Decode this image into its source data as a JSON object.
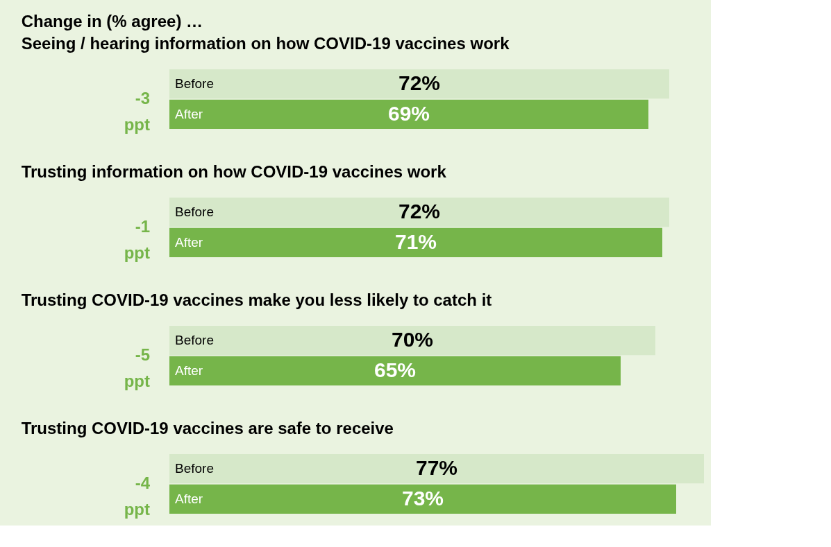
{
  "chart_data": [
    {
      "type": "bar",
      "orientation": "horizontal",
      "title": "Change in (% agree) …",
      "subtitle": "Seeing / hearing information on how COVID-19 vaccines work",
      "categories": [
        "Before",
        "After"
      ],
      "values": [
        72,
        69
      ],
      "value_labels": [
        "72%",
        "69%"
      ],
      "colors": [
        "#d6e8c9",
        "#76b54a"
      ],
      "annotations": [
        "-3 ppt"
      ]
    },
    {
      "type": "bar",
      "orientation": "horizontal",
      "title": "Trusting information on how COVID-19 vaccines work",
      "categories": [
        "Before",
        "After"
      ],
      "values": [
        72,
        71
      ],
      "value_labels": [
        "72%",
        "71%"
      ],
      "colors": [
        "#d6e8c9",
        "#76b54a"
      ],
      "annotations": [
        "-1 ppt"
      ]
    },
    {
      "type": "bar",
      "orientation": "horizontal",
      "title": "Trusting COVID-19 vaccines make you less likely to catch it",
      "categories": [
        "Before",
        "After"
      ],
      "values": [
        70,
        65
      ],
      "value_labels": [
        "70%",
        "65%"
      ],
      "colors": [
        "#d6e8c9",
        "#76b54a"
      ],
      "annotations": [
        "-5 ppt"
      ]
    },
    {
      "type": "bar",
      "orientation": "horizontal",
      "title": "Trusting COVID-19 vaccines are safe to receive",
      "categories": [
        "Before",
        "After"
      ],
      "values": [
        77,
        73
      ],
      "value_labels": [
        "77%",
        "73%"
      ],
      "colors": [
        "#d6e8c9",
        "#76b54a"
      ],
      "annotations": [
        "-4 ppt"
      ]
    }
  ]
}
